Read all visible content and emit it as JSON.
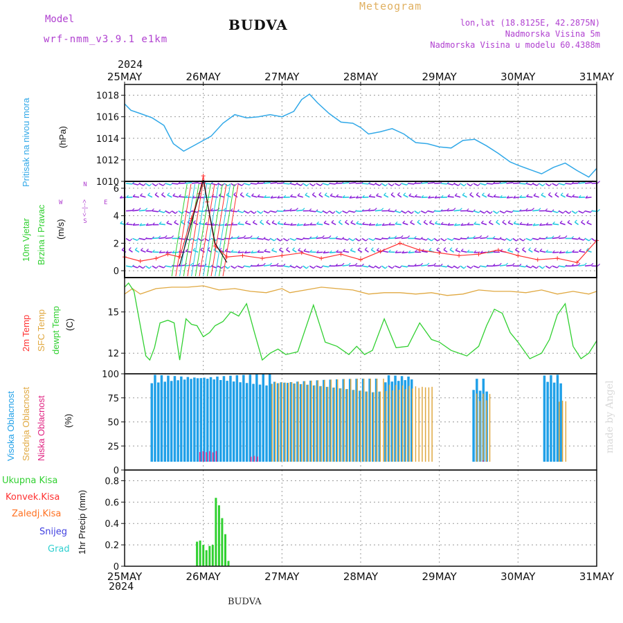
{
  "header": {
    "model_label": "Model",
    "model_name": "wrf-nmm_v3.9.1 e1km",
    "title": "BUDVA",
    "meteogram": "Meteogram",
    "coords": "lon,lat (18.8125E, 42.2875N)",
    "altitude": "Nadmorska Visina 5m",
    "model_altitude": "Nadmorska Visina u modelu 60.4388m",
    "year_top": "2024",
    "year_bottom": "2024",
    "bottom_title": "BUDVA",
    "made_by": "made by Angel"
  },
  "panel_labels": {
    "pressure": [
      "Pritisak na nivou mora",
      "(hPa)"
    ],
    "wind": [
      "10m Vjetar",
      "Brzina i Pravac",
      "(m/s)"
    ],
    "wind_compass": [
      "N",
      "S",
      "W",
      "E",
      "<--|-->"
    ],
    "temp": [
      "2m Temp",
      "SFC Temp",
      "dewpt Temp",
      "(C)"
    ],
    "cloud": [
      "Visoka Oblacnost",
      "Srednja Oblacnost",
      "Niska Oblacnost",
      "(%)"
    ],
    "precip_axis": [
      "1hr Precip (mm)"
    ],
    "precip_legend": [
      "Ukupna Kisa",
      "Konvek.Kisa",
      "Zaledj.Kisa",
      "Snijeg",
      "Grad"
    ]
  },
  "colors": {
    "pressure": "#30a8e8",
    "sfc_temp": "#e0a840",
    "temp2m": "#ff3030",
    "dewpt": "#30d030",
    "cloud_high": "#20a0e8",
    "cloud_mid": "#e0a840",
    "cloud_low": "#e02080",
    "precip": "#30d030",
    "precip_conv": "#ff3030",
    "precip_frz": "#ff7020",
    "precip_snow": "#4040e0",
    "precip_grad": "#30d0d0",
    "wind_speed": "#ff3030",
    "wind_gust": "#111111",
    "wind_barb_purple": "#8a20d8",
    "wind_barb_cyan": "#20c8e0"
  },
  "chart_data": [
    {
      "type": "line",
      "name": "pressure",
      "x_ticks": [
        "25MAY",
        "26MAY",
        "27MAY",
        "28MAY",
        "29MAY",
        "30MAY",
        "31MAY"
      ],
      "ylabel": "(hPa)",
      "ylim": [
        1010,
        1019
      ],
      "yticks": [
        1010,
        1012,
        1014,
        1016,
        1018
      ],
      "series": [
        {
          "name": "Pritisak na nivou mora",
          "x": [
            0,
            0.08,
            0.2,
            0.35,
            0.5,
            0.62,
            0.75,
            0.9,
            1.0,
            1.1,
            1.25,
            1.4,
            1.55,
            1.7,
            1.85,
            2.0,
            2.15,
            2.25,
            2.35,
            2.45,
            2.6,
            2.75,
            2.9,
            3.0,
            3.1,
            3.25,
            3.4,
            3.55,
            3.7,
            3.85,
            4.0,
            4.15,
            4.3,
            4.45,
            4.6,
            4.75,
            4.9,
            5.0,
            5.15,
            5.3,
            5.45,
            5.6,
            5.75,
            5.9,
            6.0
          ],
          "values": [
            1017.2,
            1016.6,
            1016.3,
            1015.9,
            1015.2,
            1013.5,
            1012.8,
            1013.4,
            1013.8,
            1014.2,
            1015.4,
            1016.2,
            1015.9,
            1016.0,
            1016.2,
            1016.0,
            1016.5,
            1017.6,
            1018.1,
            1017.3,
            1016.3,
            1015.5,
            1015.4,
            1015.0,
            1014.4,
            1014.6,
            1014.9,
            1014.4,
            1013.6,
            1013.5,
            1013.2,
            1013.1,
            1013.8,
            1013.9,
            1013.3,
            1012.6,
            1011.8,
            1011.5,
            1011.1,
            1010.7,
            1011.3,
            1011.7,
            1011.0,
            1010.4,
            1011.2
          ]
        }
      ]
    },
    {
      "type": "line",
      "name": "wind",
      "ylabel": "(m/s)",
      "ylim": [
        -0.5,
        6.5
      ],
      "yticks": [
        0,
        2,
        4,
        6
      ],
      "barb_levels": [
        0.5,
        1.5,
        2.5,
        3.5,
        4.5,
        5.5,
        6.5
      ],
      "series": [
        {
          "name": "speed",
          "x": [
            0,
            0.2,
            0.4,
            0.55,
            0.7,
            0.85,
            0.95,
            1.0,
            1.05,
            1.15,
            1.3,
            1.5,
            1.75,
            2.0,
            2.25,
            2.5,
            2.75,
            3.0,
            3.25,
            3.5,
            3.75,
            4.0,
            4.25,
            4.5,
            4.75,
            5.0,
            5.25,
            5.5,
            5.75,
            6.0
          ],
          "values": [
            1.0,
            0.7,
            0.9,
            1.2,
            1.0,
            3.8,
            5.6,
            6.9,
            5.0,
            1.8,
            1.0,
            1.1,
            0.9,
            1.1,
            1.3,
            0.9,
            1.2,
            0.8,
            1.4,
            2.0,
            1.5,
            1.3,
            1.1,
            1.2,
            1.5,
            1.1,
            0.8,
            0.9,
            0.6,
            2.2
          ]
        },
        {
          "name": "gust",
          "x": [
            0.7,
            0.85,
            0.95,
            1.0,
            1.05,
            1.15,
            1.3
          ],
          "values": [
            0.4,
            3.5,
            5.6,
            6.6,
            5.0,
            2.0,
            0.6
          ]
        }
      ]
    },
    {
      "type": "line",
      "name": "temperature",
      "ylabel": "(C)",
      "ylim": [
        10.5,
        17.5
      ],
      "yticks": [
        12,
        15
      ],
      "series": [
        {
          "name": "SFC Temp",
          "x": [
            0,
            0.1,
            0.2,
            0.3,
            0.4,
            0.6,
            0.8,
            1.0,
            1.2,
            1.4,
            1.6,
            1.8,
            2.0,
            2.1,
            2.3,
            2.5,
            2.7,
            2.9,
            3.1,
            3.3,
            3.5,
            3.7,
            3.9,
            4.1,
            4.3,
            4.5,
            4.7,
            4.9,
            5.1,
            5.3,
            5.5,
            5.7,
            5.9,
            6.0
          ],
          "values": [
            16.3,
            16.7,
            16.3,
            16.5,
            16.7,
            16.8,
            16.8,
            16.9,
            16.6,
            16.7,
            16.5,
            16.4,
            16.7,
            16.4,
            16.6,
            16.8,
            16.7,
            16.6,
            16.3,
            16.4,
            16.4,
            16.3,
            16.4,
            16.2,
            16.3,
            16.6,
            16.5,
            16.5,
            16.4,
            16.6,
            16.3,
            16.5,
            16.3,
            16.5
          ]
        },
        {
          "name": "dewpt Temp",
          "x": [
            0,
            0.05,
            0.12,
            0.2,
            0.27,
            0.32,
            0.38,
            0.45,
            0.55,
            0.63,
            0.7,
            0.78,
            0.85,
            0.92,
            1.0,
            1.08,
            1.15,
            1.25,
            1.35,
            1.45,
            1.55,
            1.65,
            1.75,
            1.85,
            1.95,
            2.05,
            2.2,
            2.4,
            2.55,
            2.7,
            2.85,
            2.95,
            3.05,
            3.15,
            3.3,
            3.45,
            3.6,
            3.75,
            3.9,
            4.0,
            4.15,
            4.35,
            4.5,
            4.6,
            4.7,
            4.8,
            4.9,
            5.0,
            5.15,
            5.3,
            5.4,
            5.5,
            5.6,
            5.7,
            5.8,
            5.9,
            6.0
          ],
          "values": [
            16.8,
            17.1,
            16.5,
            14.0,
            11.8,
            11.5,
            12.4,
            14.2,
            14.4,
            14.2,
            11.5,
            14.5,
            14.1,
            14.0,
            13.2,
            13.5,
            14.0,
            14.3,
            15.0,
            14.7,
            15.6,
            13.5,
            11.5,
            12.0,
            12.3,
            11.9,
            12.1,
            15.5,
            12.8,
            12.5,
            11.9,
            12.5,
            11.9,
            12.2,
            14.5,
            12.4,
            12.5,
            14.2,
            13.0,
            12.8,
            12.2,
            11.8,
            12.5,
            14.0,
            15.2,
            14.9,
            13.5,
            12.8,
            11.6,
            12.0,
            13.0,
            14.8,
            15.6,
            12.5,
            11.6,
            12.0,
            12.9
          ]
        }
      ]
    },
    {
      "type": "bar",
      "name": "cloud",
      "ylabel": "(%)",
      "ylim": [
        0,
        100
      ],
      "yticks": [
        0,
        25,
        50,
        75,
        100
      ],
      "series": [
        {
          "name": "Visoka Oblacnost",
          "segments": [
            [
              0.33,
              1.85,
              100
            ],
            [
              1.85,
              3.25,
              95
            ],
            [
              3.3,
              3.65,
              100
            ],
            [
              4.42,
              4.6,
              95
            ],
            [
              5.32,
              5.55,
              100
            ]
          ]
        },
        {
          "name": "Srednja Oblacnost",
          "segments": [
            [
              1.85,
              3.3,
              95
            ],
            [
              3.3,
              3.9,
              90
            ],
            [
              4.45,
              4.62,
              80
            ],
            [
              5.5,
              5.62,
              75
            ]
          ]
        },
        {
          "name": "Niska Oblacnost",
          "segments": [
            [
              0.95,
              1.2,
              20
            ],
            [
              1.6,
              1.7,
              15
            ],
            [
              4.55,
              4.6,
              10
            ]
          ]
        }
      ]
    },
    {
      "type": "bar",
      "name": "precip",
      "ylabel": "1hr Precip (mm)",
      "ylim": [
        0,
        0.9
      ],
      "yticks": [
        0,
        0.2,
        0.4,
        0.6,
        0.8
      ],
      "series": [
        {
          "name": "Ukupna Kisa",
          "x": [
            0.92,
            0.96,
            1.0,
            1.04,
            1.08,
            1.12,
            1.16,
            1.2,
            1.24,
            1.28,
            1.32
          ],
          "values": [
            0.23,
            0.24,
            0.2,
            0.15,
            0.19,
            0.2,
            0.64,
            0.57,
            0.45,
            0.3,
            0.05
          ]
        }
      ]
    }
  ]
}
